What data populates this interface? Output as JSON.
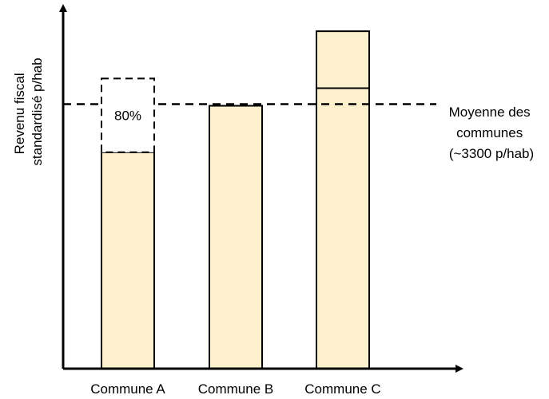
{
  "chart_data": {
    "type": "bar",
    "ylabel_lines": [
      "Revenu fiscal",
      "standardisé p/hab"
    ],
    "categories": [
      "Commune A",
      "Commune B",
      "Commune C"
    ],
    "values": [
      2700,
      3280,
      4210
    ],
    "ylim": [
      0,
      4500
    ],
    "bar_color": "#fdf0cd",
    "reference_line": {
      "value": 3300,
      "label_lines": [
        "Moyenne des",
        "communes",
        "(~3300 p/hab)"
      ],
      "style": "dashed"
    },
    "annotations": [
      {
        "category": "Commune A",
        "type": "dashed-box",
        "from": 2700,
        "to": 3620,
        "label": "80%"
      },
      {
        "category": "Commune C",
        "type": "segment-line",
        "value": 3500
      }
    ],
    "grid": false
  }
}
